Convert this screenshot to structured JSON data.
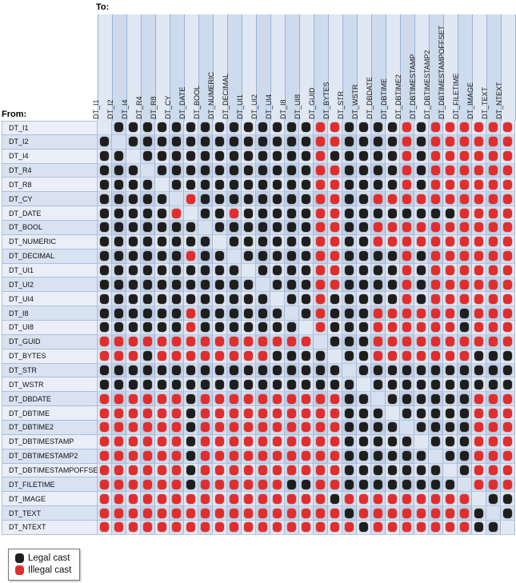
{
  "page": {
    "to_label": "To:",
    "from_label": "From:"
  },
  "legend": {
    "items": [
      {
        "key": "legal",
        "label": "Legal cast",
        "color": "#1e1e1e"
      },
      {
        "key": "illegal",
        "label": "Illegal cast",
        "color": "#e02d2d"
      }
    ]
  },
  "colors": {
    "legal_dot": "#1e1e1e",
    "illegal_dot": "#e02d2d",
    "header_band_odd": "#dfe8f3",
    "header_band_even": "#cddbec",
    "label_bg_odd": "#e9eef8",
    "label_bg_even": "#d8e2f1",
    "plaid_light_light": "#e3eaf5",
    "plaid_mixed": "#d3dfee",
    "plaid_dark_dark": "#c3d1e7",
    "diag_odd": "#e0e8f3",
    "diag_even": "#d6e0ef"
  },
  "chart_data": {
    "type": "heatmap",
    "xlabel": "To:",
    "ylabel": "From:",
    "legend_position": "bottom-left",
    "cell_encoding": {
      "B": "Legal cast",
      "R": "Illegal cast",
      ".": "empty (same type, no cast shown)"
    },
    "x_categories": [
      "DT_I1",
      "DT_I2",
      "DT_I4",
      "DT_R4",
      "DT_R8",
      "DT_CY",
      "DT_DATE",
      "DT_BOOL",
      "DT_NUMERIC",
      "DT_DECIMAL",
      "DT_UI1",
      "DT_UI2",
      "DT_UI4",
      "DT_I8",
      "DT_UI8",
      "DT_GUID",
      "DT_BYTES",
      "DT_STR",
      "DT_WSTR",
      "DT_DBDATE",
      "DT_DBTIME",
      "DT_DBTIME2",
      "DT_DBTIMESTAMP",
      "DT_DBTIMESTAMP2",
      "DT_DBTIMESTAMPOFFSET",
      "DT_FILETIME",
      "DT_IMAGE",
      "DT_TEXT",
      "DT_NTEXT"
    ],
    "y_categories": [
      "DT_I1",
      "DT_I2",
      "DT_I4",
      "DT_R4",
      "DT_R8",
      "DT_CY",
      "DT_DATE",
      "DT_BOOL",
      "DT_NUMERIC",
      "DT_DECIMAL",
      "DT_UI1",
      "DT_UI2",
      "DT_UI4",
      "DT_I8",
      "DT_UI8",
      "DT_GUID",
      "DT_BYTES",
      "DT_STR",
      "DT_WSTR",
      "DT_DBDATE",
      "DT_DBTIME",
      "DT_DBTIME2",
      "DT_DBTIMESTAMP",
      "DT_DBTIMESTAMP2",
      "DT_DBTIMESTAMPOFFSET",
      "DT_FILETIME",
      "DT_IMAGE",
      "DT_TEXT",
      "DT_NTEXT"
    ],
    "matrix_rows": [
      ".BBBBBBBBBBBBBBRRBBBBRBRRRRRR",
      "B.BBBBBBBBBBBBBRRBBBBRBRRRRRR",
      "BB.BBBBBBBBBBBBRBBBBBRBRRRRRR",
      "BBB.BBBBBBBBBBBRRBBBBRBRRRRRR",
      "BBBB.BBBBBBBBBBRRBBBBRBRRRRRR",
      "BBBBB.RBBBBBBBBRRBBRRRRRRRRRR",
      "BBBBBR.BBRBBBBBRRBBBBBBBBRRRR",
      "BBBBBBB.BBBBBBBRRBBRRRRRRRRRR",
      "BBBBBBBB.BBBBBBRRBBRRRRRRRRRR",
      "BBBBBBRBB.BBBBBRRBBBBRBRRRRRR",
      "BBBBBBBBBB.BBBBRRBBBBRBRRRRRR",
      "BBBBBBBBBBB.BBBRRBBBBRBRRRRRR",
      "BBBBBBBBBBBB.BBRBBBBBRBRRRRRR",
      "BBBBBBRBBBBBB.BRBBBRRRRRRBRRR",
      "BBBBBBRBBBBBBB.RBBBRRRRRRBRRR",
      "RRRRRRRRRRRRRRR.BBBRRRRRRRRRR",
      "RRRBRRRRRRRRBBBB.BBRRRRRRRBBB",
      "BBBBBBBBBBBBBBBBB.BBBBBBBBBBB",
      "BBBBBBBBBBBBBBBBBB.BBBBBBBBBB",
      "RRRRRRBRRRRRRRRRRBB.BBBBBBRRR",
      "RRRRRRBRRRRRRRRRRBBB.BBBBBRRR",
      "RRRRRRBRRRRRRRRRRBBBB.BBBBRRR",
      "RRRRRRBRRRRRRRRRRBBBBB.BBBRRR",
      "RRRRRRBRRRRRRRRRRBBBBBB.BBRRR",
      "RRRRRRBRRRRRRRRRRBBBBBBB.BRRR",
      "RRRRRRBRRRRRRBBRRBBBBBBBB.RRR",
      "RRRRRRRRRRRRRRRRBRRRRRRRRR.BB",
      "RRRRRRRRRRRRRRRRRBRRRRRRRRB.B",
      "RRRRRRRRRRRRRRRRRRBRRRRRRRBB."
    ]
  }
}
